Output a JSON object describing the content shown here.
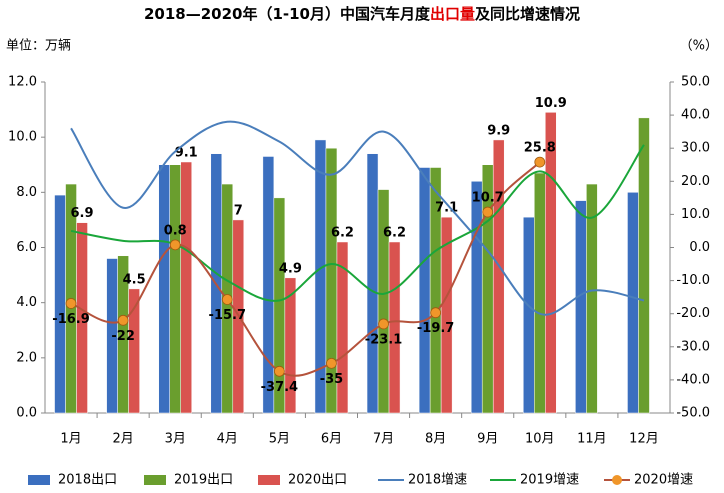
{
  "chart_data": {
    "type": "bar_line",
    "title": [
      "2018—2020年（1-10月）中国汽车月度",
      "出口量",
      "及同比增速情况"
    ],
    "title_colors": [
      "#000000",
      "#e00000",
      "#000000"
    ],
    "y_label": "单位：万辆",
    "y2_label": "（%）",
    "categories": [
      "1月",
      "2月",
      "3月",
      "4月",
      "5月",
      "6月",
      "7月",
      "8月",
      "9月",
      "10月",
      "11月",
      "12月"
    ],
    "ylim": [
      0,
      12
    ],
    "yticks": [
      {
        "value": 0,
        "label": "0.0"
      },
      {
        "value": 2,
        "label": "2.0"
      },
      {
        "value": 4,
        "label": "4.0"
      },
      {
        "value": 6,
        "label": "6.0"
      },
      {
        "value": 8,
        "label": "8.0"
      },
      {
        "value": 10,
        "label": "10.0"
      },
      {
        "value": 12,
        "label": "12.0"
      }
    ],
    "y2lim": [
      -50,
      50
    ],
    "y2ticks": [
      {
        "value": -50,
        "label": "-50.0"
      },
      {
        "value": -40,
        "label": "-40.0"
      },
      {
        "value": -30,
        "label": "-30.0"
      },
      {
        "value": -20,
        "label": "-20.0"
      },
      {
        "value": -10,
        "label": "-10.0"
      },
      {
        "value": 0,
        "label": "0.0"
      },
      {
        "value": 10,
        "label": "10.0"
      },
      {
        "value": 20,
        "label": "20.0"
      },
      {
        "value": 30,
        "label": "30.0"
      },
      {
        "value": 40,
        "label": "40.0"
      },
      {
        "value": 50,
        "label": "50.0"
      }
    ],
    "grid": false,
    "legend": "bottom",
    "series": [
      {
        "name": "2018出口",
        "kind": "bar",
        "color": "#3b6fbf",
        "values": [
          7.9,
          5.6,
          9.0,
          9.4,
          9.3,
          9.9,
          9.4,
          8.9,
          8.4,
          7.1,
          7.7,
          8.0
        ]
      },
      {
        "name": "2019出口",
        "kind": "bar",
        "color": "#6a9e2e",
        "values": [
          8.3,
          5.7,
          9.0,
          8.3,
          7.8,
          9.6,
          8.1,
          8.9,
          9.0,
          8.7,
          8.3,
          10.7
        ]
      },
      {
        "name": "2020出口",
        "kind": "bar",
        "color": "#d9534f",
        "label_color": "#1f1fcc",
        "labels": true,
        "values": [
          6.9,
          4.5,
          9.1,
          7.0,
          4.9,
          6.2,
          6.2,
          7.1,
          9.9,
          10.9,
          null,
          null
        ]
      },
      {
        "name": "2018增速",
        "kind": "line",
        "axis": "y2",
        "color": "#4a7ebb",
        "values": [
          36,
          12,
          29,
          38,
          32,
          22,
          35,
          17,
          -1,
          -20,
          -13,
          -16
        ]
      },
      {
        "name": "2019增速",
        "kind": "line",
        "axis": "y2",
        "color": "#1aa63a",
        "values": [
          5,
          2,
          1,
          -10,
          -16,
          -5,
          -14,
          -1,
          8,
          23,
          9,
          31
        ]
      },
      {
        "name": "2020增速",
        "kind": "line",
        "axis": "y2",
        "color": "#b5533c",
        "marker_color": "#f0962a",
        "labels": true,
        "values": [
          -16.9,
          -22.0,
          0.8,
          -15.7,
          -37.4,
          -35.0,
          -23.1,
          -19.7,
          10.7,
          25.8,
          null,
          null
        ]
      }
    ]
  }
}
